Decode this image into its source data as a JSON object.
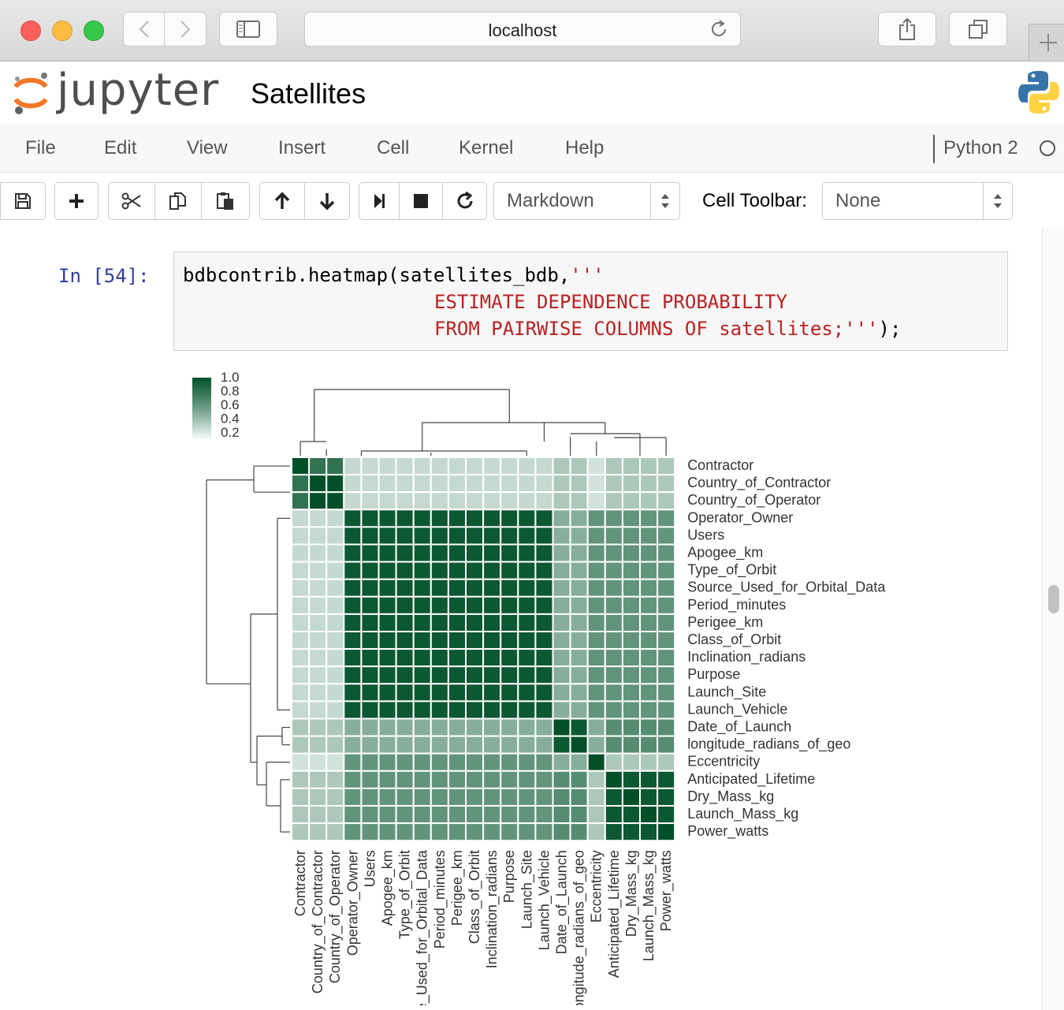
{
  "browser": {
    "url": "localhost"
  },
  "header": {
    "logo_text": "jupyter",
    "notebook_title": "Satellites"
  },
  "menu": {
    "items": [
      "File",
      "Edit",
      "View",
      "Insert",
      "Cell",
      "Kernel",
      "Help"
    ],
    "kernel_name": "Python 2"
  },
  "toolbar": {
    "cell_type": "Markdown",
    "cell_toolbar_label": "Cell Toolbar:",
    "cell_toolbar_value": "None",
    "icons": [
      "save-icon",
      "plus-icon",
      "scissors-icon",
      "copy-icon",
      "paste-icon",
      "arrow-up-icon",
      "arrow-down-icon",
      "step-forward-icon",
      "stop-icon",
      "refresh-icon"
    ]
  },
  "cell": {
    "prompt": "In [54]:",
    "line1_code": "bdbcontrib.heatmap(satellites_bdb,",
    "line1_str": "'''",
    "line2_str": "ESTIMATE DEPENDENCE PROBABILITY",
    "line3_str": "FROM PAIRWISE COLUMNS OF satellites;'''",
    "line3_tail": ");"
  },
  "chart_data": {
    "type": "heatmap",
    "colormap": "white-to-dark-green",
    "colorbar_ticks": [
      "1.0",
      "0.8",
      "0.6",
      "0.4",
      "0.2"
    ],
    "row_labels": [
      "Contractor",
      "Country_of_Contractor",
      "Country_of_Operator",
      "Operator_Owner",
      "Users",
      "Apogee_km",
      "Type_of_Orbit",
      "Source_Used_for_Orbital_Data",
      "Period_minutes",
      "Perigee_km",
      "Class_of_Orbit",
      "Inclination_radians",
      "Purpose",
      "Launch_Site",
      "Launch_Vehicle",
      "Date_of_Launch",
      "longitude_radians_of_geo",
      "Eccentricity",
      "Anticipated_Lifetime",
      "Dry_Mass_kg",
      "Launch_Mass_kg",
      "Power_watts"
    ],
    "col_labels": [
      "Contractor",
      "Country_of_Contractor",
      "Country_of_Operator",
      "Operator_Owner",
      "Users",
      "Apogee_km",
      "Type_of_Orbit",
      "Source_Used_for_Orbital_Data",
      "Period_minutes",
      "Perigee_km",
      "Class_of_Orbit",
      "Inclination_radians",
      "Purpose",
      "Launch_Site",
      "Launch_Vehicle",
      "Date_of_Launch",
      "longitude_radians_of_geo",
      "Eccentricity",
      "Anticipated_Lifetime",
      "Dry_Mass_kg",
      "Launch_Mass_kg",
      "Power_watts"
    ],
    "groups": [
      [
        0,
        2
      ],
      [
        3,
        14
      ],
      [
        15,
        16
      ],
      [
        17,
        17
      ],
      [
        18,
        21
      ]
    ],
    "block_values": [
      [
        0.9,
        0.2,
        0.3,
        0.15,
        0.3
      ],
      [
        0.2,
        0.95,
        0.45,
        0.6,
        0.6
      ],
      [
        0.3,
        0.45,
        0.95,
        0.45,
        0.65
      ],
      [
        0.15,
        0.6,
        0.45,
        1.0,
        0.3
      ],
      [
        0.3,
        0.6,
        0.65,
        0.3,
        0.95
      ]
    ],
    "overrides": [
      {
        "row": 0,
        "col": 0,
        "value": 1.0
      },
      {
        "row": 1,
        "col": 1,
        "value": 1.0
      },
      {
        "row": 1,
        "col": 2,
        "value": 1.0
      },
      {
        "row": 2,
        "col": 1,
        "value": 1.0
      },
      {
        "row": 2,
        "col": 2,
        "value": 1.0
      },
      {
        "row": 1,
        "col": 0,
        "value": 0.8
      },
      {
        "row": 2,
        "col": 0,
        "value": 0.8
      },
      {
        "row": 0,
        "col": 1,
        "value": 0.8
      },
      {
        "row": 0,
        "col": 2,
        "value": 0.8
      },
      {
        "row": 15,
        "col": 15,
        "value": 1.0
      },
      {
        "row": 16,
        "col": 16,
        "value": 1.0
      },
      {
        "row": 17,
        "col": 17,
        "value": 1.0
      },
      {
        "row": 18,
        "col": 18,
        "value": 1.0
      },
      {
        "row": 19,
        "col": 19,
        "value": 1.0
      },
      {
        "row": 20,
        "col": 20,
        "value": 1.0
      },
      {
        "row": 21,
        "col": 21,
        "value": 1.0
      }
    ]
  }
}
